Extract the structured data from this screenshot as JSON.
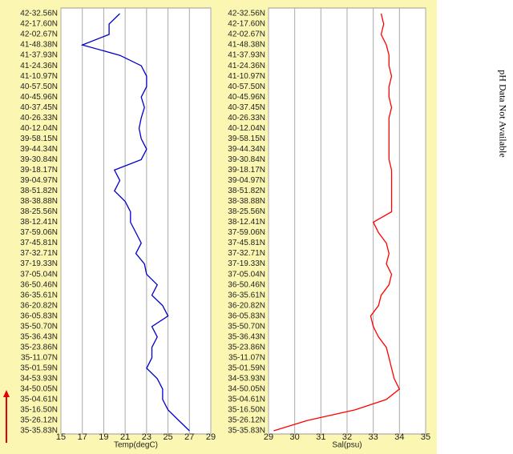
{
  "chart_data": [
    {
      "type": "line",
      "orientation": "horizontal",
      "xlabel": "Temp(degC)",
      "categories": [
        "42-32.56N",
        "42-17.60N",
        "42-02.67N",
        "41-48.38N",
        "41-37.93N",
        "41-24.36N",
        "41-10.97N",
        "40-57.50N",
        "40-45.96N",
        "40-37.45N",
        "40-26.33N",
        "40-12.04N",
        "39-58.15N",
        "39-44.34N",
        "39-30.84N",
        "39-18.17N",
        "39-04.97N",
        "38-51.82N",
        "38-38.88N",
        "38-25.56N",
        "38-12.41N",
        "37-59.06N",
        "37-45.81N",
        "37-32.71N",
        "37-19.33N",
        "37-05.04N",
        "36-50.46N",
        "36-35.61N",
        "36-20.82N",
        "36-05.83N",
        "35-50.70N",
        "35-36.43N",
        "35-23.86N",
        "35-11.07N",
        "35-01.59N",
        "34-53.93N",
        "34-50.05N",
        "35-04.61N",
        "35-16.50N",
        "35-26.12N",
        "35-35.83N"
      ],
      "series": [
        {
          "color": "#0000cc",
          "values": [
            20.5,
            19.5,
            19.5,
            17,
            20.5,
            22.5,
            23,
            23,
            22.5,
            22.8,
            22.5,
            22.3,
            22.5,
            23,
            22.5,
            20,
            20.5,
            20,
            21,
            21.5,
            21.5,
            22,
            22.5,
            22,
            22.8,
            23,
            24,
            23.5,
            24.5,
            25,
            23.5,
            24,
            23.5,
            23.5,
            23,
            24,
            24.5,
            24.5,
            25,
            26,
            27
          ]
        }
      ],
      "xlim": [
        15,
        29
      ],
      "xticks": [
        15,
        17,
        19,
        21,
        23,
        25,
        27,
        29
      ],
      "grid": true
    },
    {
      "type": "line",
      "orientation": "horizontal",
      "xlabel": "Sal(psu)",
      "categories": [
        "42-32.56N",
        "42-17.60N",
        "42-02.67N",
        "41-48.38N",
        "41-37.93N",
        "41-24.36N",
        "41-10.97N",
        "40-57.50N",
        "40-45.96N",
        "40-37.45N",
        "40-26.33N",
        "40-12.04N",
        "39-58.15N",
        "39-44.34N",
        "39-30.84N",
        "39-18.17N",
        "39-04.97N",
        "38-51.82N",
        "38-38.88N",
        "38-25.56N",
        "38-12.41N",
        "37-59.06N",
        "37-45.81N",
        "37-32.71N",
        "37-19.33N",
        "37-05.04N",
        "36-50.46N",
        "36-35.61N",
        "36-20.82N",
        "36-05.83N",
        "35-50.70N",
        "35-36.43N",
        "35-23.86N",
        "35-11.07N",
        "35-01.59N",
        "34-53.93N",
        "34-50.05N",
        "35-04.61N",
        "35-16.50N",
        "35-26.12N",
        "35-35.83N"
      ],
      "series": [
        {
          "color": "#ff0000",
          "values": [
            33.3,
            33.4,
            33.3,
            33.5,
            33.6,
            33.6,
            33.7,
            33.6,
            33.6,
            33.7,
            33.6,
            33.6,
            33.6,
            33.6,
            33.6,
            33.7,
            33.7,
            33.7,
            33.7,
            33.7,
            33.0,
            33.2,
            33.5,
            33.6,
            33.5,
            33.7,
            33.6,
            33.3,
            33.2,
            32.9,
            33.0,
            33.2,
            33.5,
            33.6,
            33.7,
            33.8,
            34.0,
            33.5,
            32.3,
            30.5,
            29.2
          ]
        }
      ],
      "xlim": [
        29,
        35
      ],
      "xticks": [
        29,
        30,
        31,
        32,
        33,
        34,
        35
      ],
      "grid": true
    }
  ],
  "side_note": "pH Data Not Available"
}
